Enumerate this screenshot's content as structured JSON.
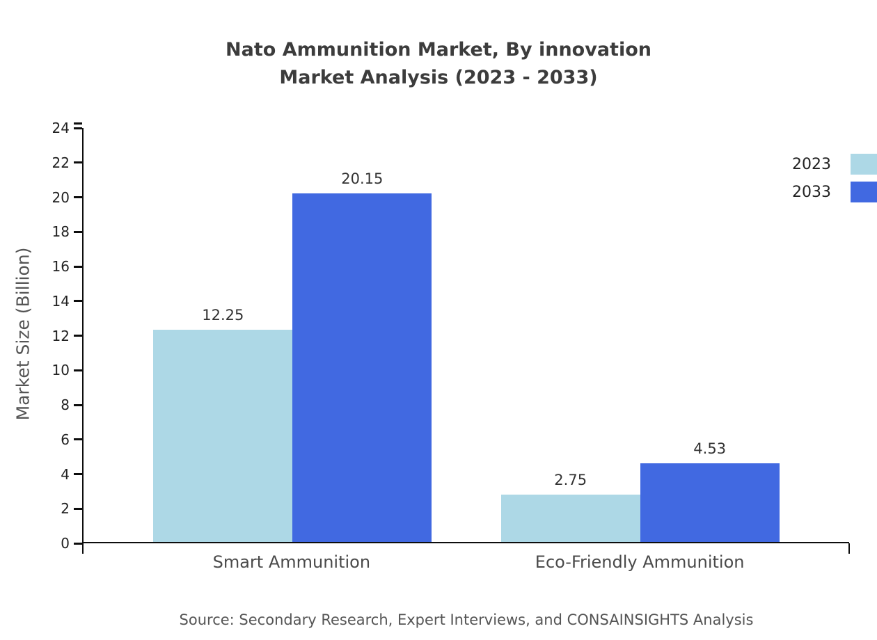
{
  "chart_data": {
    "type": "bar",
    "title": "Nato Ammunition Market, By innovation Market Analysis (2023 - 2033)",
    "title_lines": [
      "Nato Ammunition Market, By innovation",
      "Market Analysis (2023 - 2033)"
    ],
    "categories": [
      "Smart Ammunition",
      "Eco-Friendly Ammunition"
    ],
    "series": [
      {
        "name": "2023",
        "color": "#ADD8E6",
        "values": [
          12.25,
          2.75
        ]
      },
      {
        "name": "2033",
        "color": "#4169E1",
        "values": [
          20.15,
          4.53
        ]
      }
    ],
    "value_labels": [
      [
        "12.25",
        "2.75"
      ],
      [
        "20.15",
        "4.53"
      ]
    ],
    "xlabel": "",
    "ylabel": "Market Size (Billion)",
    "ylim": [
      0,
      24
    ],
    "ytick_interval": 2,
    "grid": false,
    "legend_position": "top-right",
    "source": "Source: Secondary Research, Expert Interviews, and CONSAINSIGHTS Analysis"
  }
}
